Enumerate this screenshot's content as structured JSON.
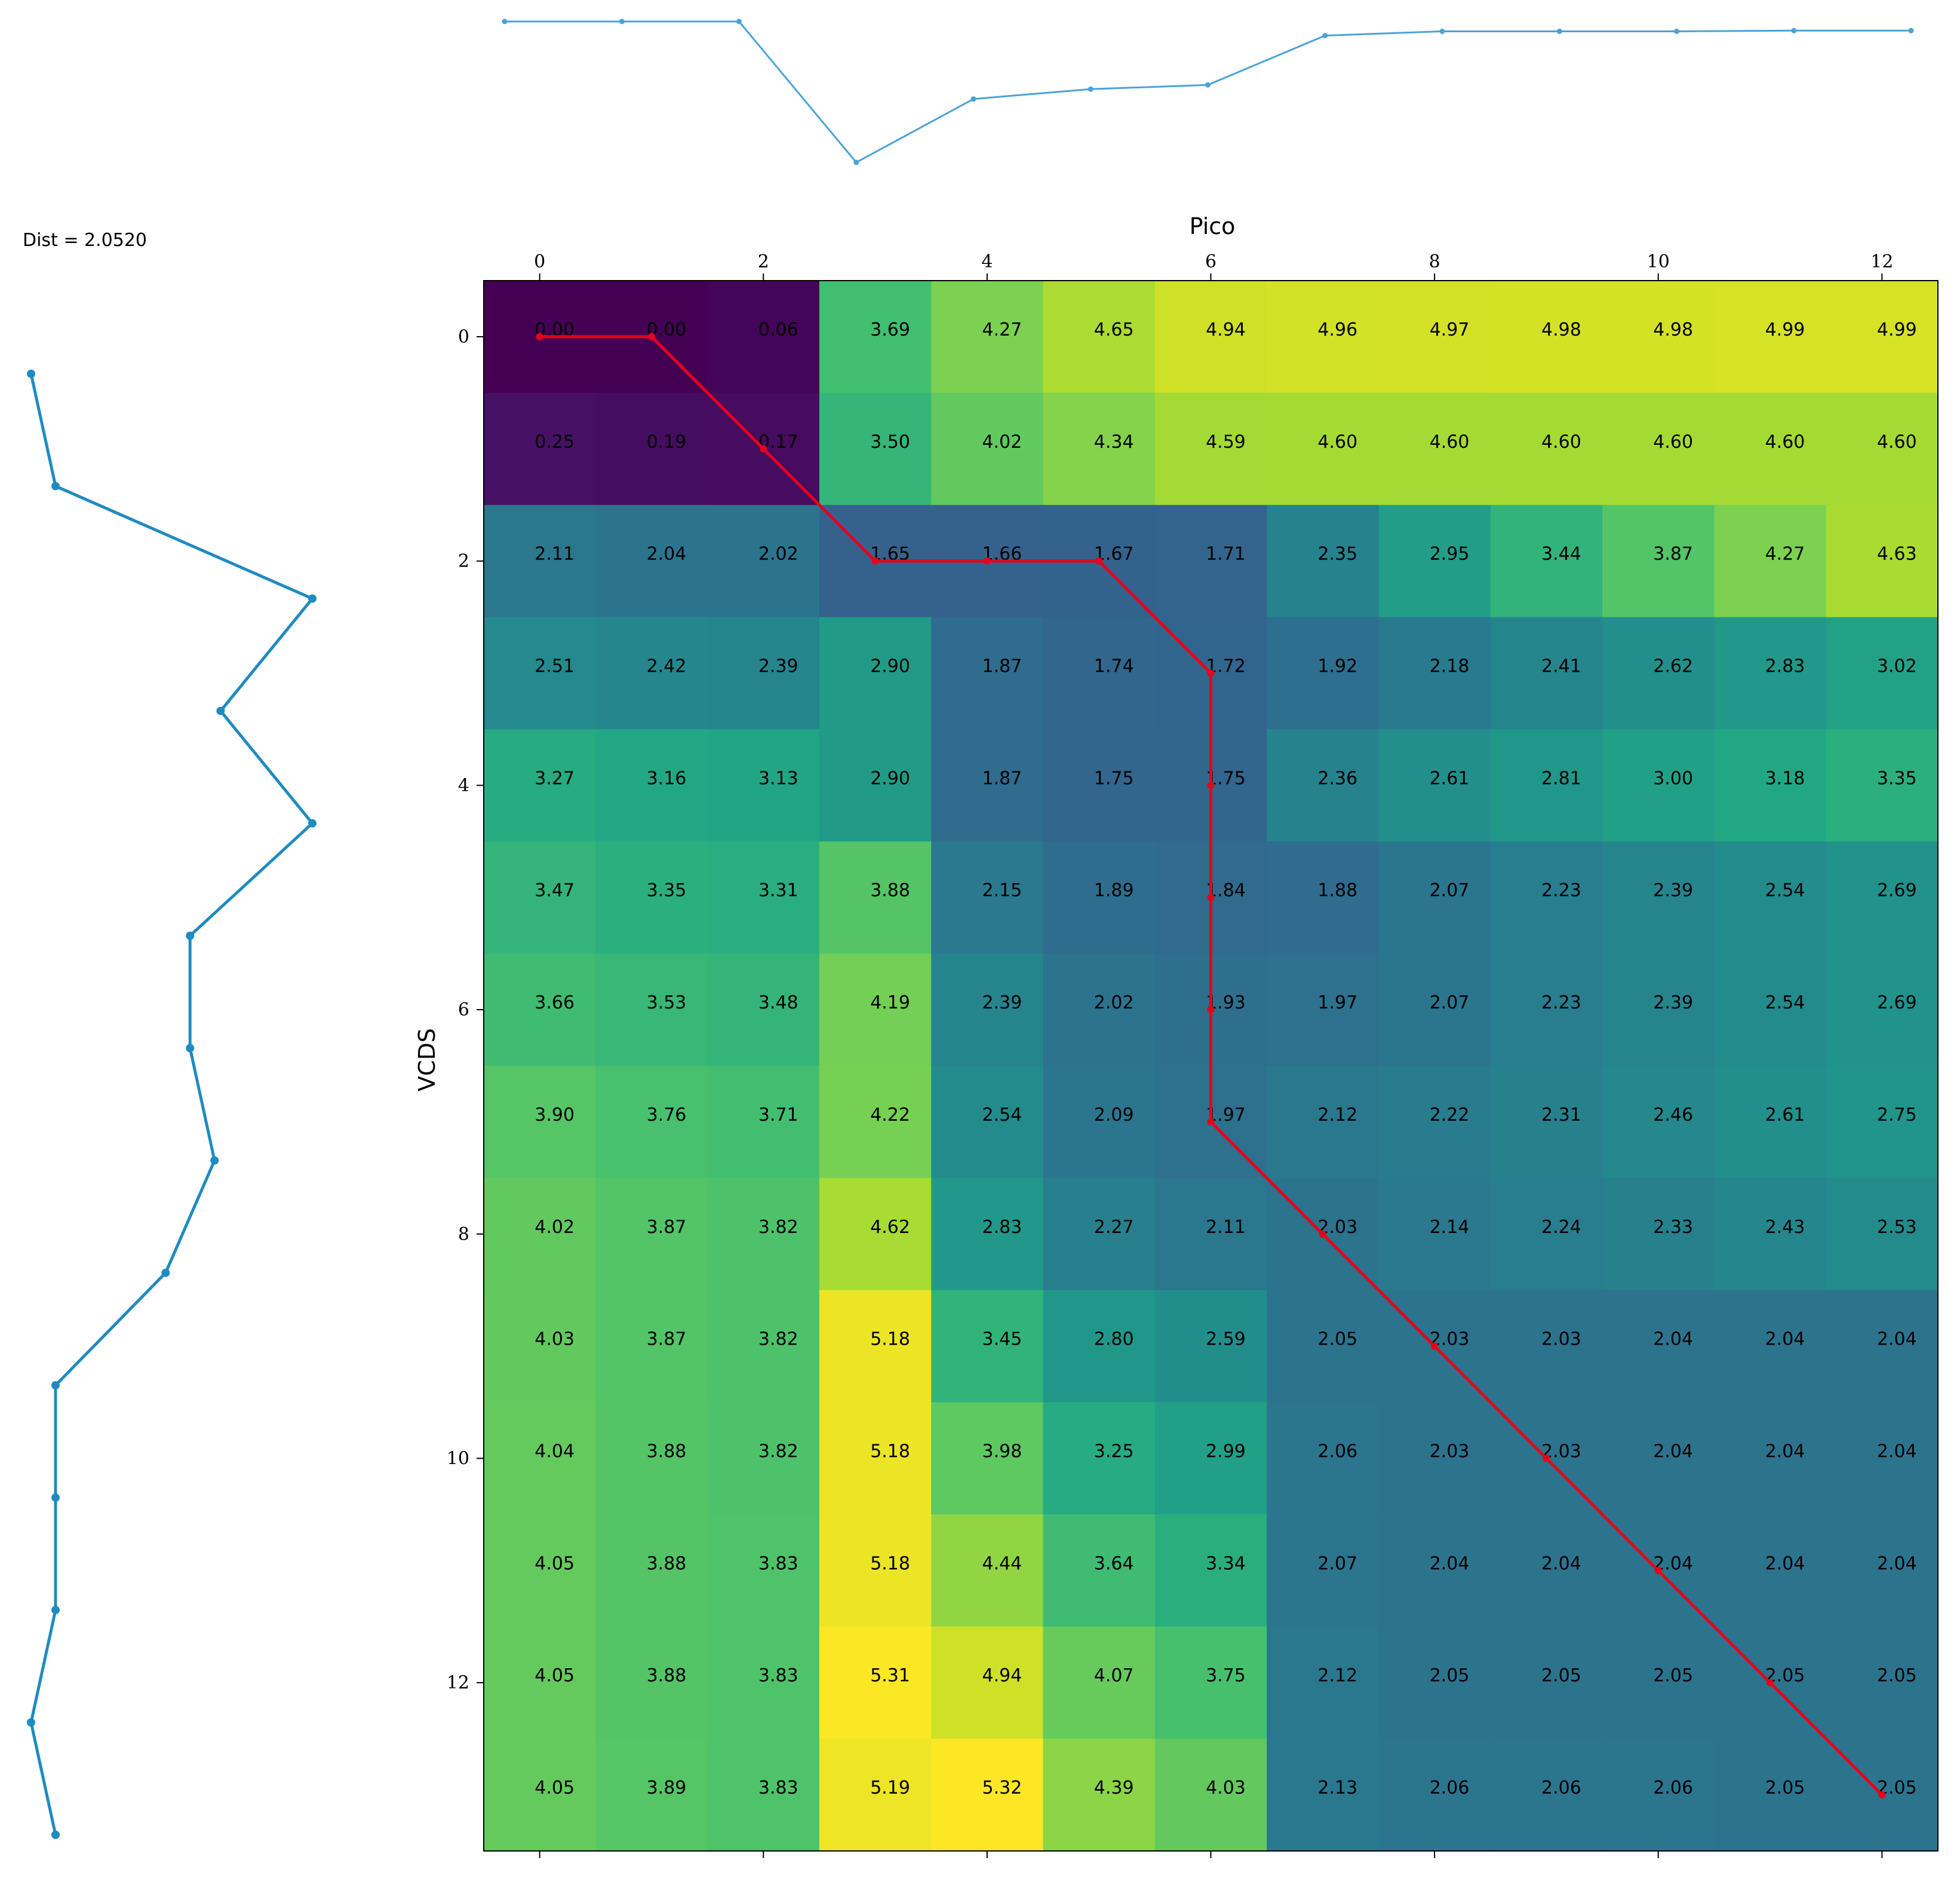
{
  "chart_data": {
    "type": "heatmap",
    "dist_label": "Dist = 2.0520",
    "xlabel": "Pico",
    "ylabel": "VCDS",
    "xticks": [
      0,
      2,
      4,
      6,
      8,
      10,
      12
    ],
    "yticks": [
      0,
      2,
      4,
      6,
      8,
      10,
      12
    ],
    "colormap": "viridis",
    "vmin": 0,
    "vmax": 5.32,
    "matrix": [
      [
        0.0,
        0.0,
        0.06,
        3.69,
        4.27,
        4.65,
        4.94,
        4.96,
        4.97,
        4.98,
        4.98,
        4.99,
        4.99
      ],
      [
        0.25,
        0.19,
        0.17,
        3.5,
        4.02,
        4.34,
        4.59,
        4.6,
        4.6,
        4.6,
        4.6,
        4.6,
        4.6
      ],
      [
        2.11,
        2.04,
        2.02,
        1.65,
        1.66,
        1.67,
        1.71,
        2.35,
        2.95,
        3.44,
        3.87,
        4.27,
        4.63
      ],
      [
        2.51,
        2.42,
        2.39,
        2.9,
        1.87,
        1.74,
        1.72,
        1.92,
        2.18,
        2.41,
        2.62,
        2.83,
        3.02
      ],
      [
        3.27,
        3.16,
        3.13,
        2.9,
        1.87,
        1.75,
        1.75,
        2.36,
        2.61,
        2.81,
        3.0,
        3.18,
        3.35
      ],
      [
        3.47,
        3.35,
        3.31,
        3.88,
        2.15,
        1.89,
        1.84,
        1.88,
        2.07,
        2.23,
        2.39,
        2.54,
        2.69
      ],
      [
        3.66,
        3.53,
        3.48,
        4.19,
        2.39,
        2.02,
        1.93,
        1.97,
        2.07,
        2.23,
        2.39,
        2.54,
        2.69
      ],
      [
        3.9,
        3.76,
        3.71,
        4.22,
        2.54,
        2.09,
        1.97,
        2.12,
        2.22,
        2.31,
        2.46,
        2.61,
        2.75
      ],
      [
        4.02,
        3.87,
        3.82,
        4.62,
        2.83,
        2.27,
        2.11,
        2.03,
        2.14,
        2.24,
        2.33,
        2.43,
        2.53
      ],
      [
        4.03,
        3.87,
        3.82,
        5.18,
        3.45,
        2.8,
        2.59,
        2.05,
        2.03,
        2.03,
        2.04,
        2.04,
        2.04
      ],
      [
        4.04,
        3.88,
        3.82,
        5.18,
        3.98,
        3.25,
        2.99,
        2.06,
        2.03,
        2.03,
        2.04,
        2.04,
        2.04
      ],
      [
        4.05,
        3.88,
        3.83,
        5.18,
        4.44,
        3.64,
        3.34,
        2.07,
        2.04,
        2.04,
        2.04,
        2.04,
        2.04
      ],
      [
        4.05,
        3.88,
        3.83,
        5.31,
        4.94,
        4.07,
        3.75,
        2.12,
        2.05,
        2.05,
        2.05,
        2.05,
        2.05
      ],
      [
        4.05,
        3.89,
        3.83,
        5.19,
        5.32,
        4.39,
        4.03,
        2.13,
        2.06,
        2.06,
        2.06,
        2.05,
        2.05
      ]
    ],
    "warping_path": [
      [
        0,
        0
      ],
      [
        0,
        1
      ],
      [
        1,
        2
      ],
      [
        2,
        3
      ],
      [
        2,
        4
      ],
      [
        2,
        5
      ],
      [
        3,
        6
      ],
      [
        4,
        6
      ],
      [
        5,
        6
      ],
      [
        6,
        6
      ],
      [
        7,
        6
      ],
      [
        8,
        7
      ],
      [
        9,
        8
      ],
      [
        10,
        9
      ],
      [
        11,
        10
      ],
      [
        12,
        11
      ],
      [
        13,
        12
      ]
    ],
    "top_series_pico": [
      0.0,
      0.0,
      0.0,
      -1.0,
      -0.55,
      -0.48,
      -0.45,
      -0.1,
      -0.07,
      -0.07,
      -0.07,
      -0.065,
      -0.065
    ],
    "left_series_vcds": [
      0.0,
      0.2,
      2.3,
      1.55,
      2.3,
      1.3,
      1.3,
      1.5,
      1.1,
      0.2,
      0.2,
      0.2,
      0.0,
      0.2
    ],
    "colors": {
      "path": "#e8001c",
      "series": "#1f8bc0",
      "top_series": "#4aa3d6"
    }
  }
}
